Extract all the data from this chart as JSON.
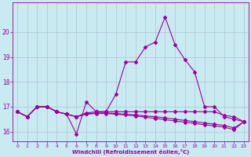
{
  "x": [
    0,
    1,
    2,
    3,
    4,
    5,
    6,
    7,
    8,
    9,
    10,
    11,
    12,
    13,
    14,
    15,
    16,
    17,
    18,
    19,
    20,
    21,
    22,
    23
  ],
  "line1": [
    16.8,
    16.6,
    17.0,
    17.0,
    16.8,
    16.7,
    15.9,
    17.2,
    16.8,
    16.8,
    17.5,
    18.8,
    18.8,
    19.4,
    19.6,
    20.6,
    19.5,
    18.9,
    18.4,
    17.0,
    17.0,
    16.6,
    16.5,
    16.4
  ],
  "line2": [
    16.8,
    16.6,
    17.0,
    17.0,
    16.8,
    16.7,
    16.6,
    16.75,
    16.8,
    16.8,
    16.8,
    16.8,
    16.8,
    16.8,
    16.8,
    16.8,
    16.8,
    16.8,
    16.8,
    16.8,
    16.8,
    16.65,
    16.6,
    16.4
  ],
  "line3": [
    16.8,
    16.6,
    17.0,
    17.0,
    16.8,
    16.7,
    16.6,
    16.72,
    16.75,
    16.75,
    16.73,
    16.7,
    16.67,
    16.63,
    16.6,
    16.55,
    16.5,
    16.45,
    16.4,
    16.35,
    16.3,
    16.25,
    16.15,
    16.4
  ],
  "line4": [
    16.8,
    16.6,
    17.0,
    17.0,
    16.8,
    16.7,
    16.6,
    16.7,
    16.73,
    16.73,
    16.7,
    16.67,
    16.63,
    16.58,
    16.53,
    16.48,
    16.43,
    16.38,
    16.33,
    16.28,
    16.23,
    16.18,
    16.08,
    16.4
  ],
  "ylim": [
    15.6,
    21.2
  ],
  "yticks": [
    16,
    17,
    18,
    19,
    20
  ],
  "xticks": [
    0,
    1,
    2,
    3,
    4,
    5,
    6,
    7,
    8,
    9,
    10,
    11,
    12,
    13,
    14,
    15,
    16,
    17,
    18,
    19,
    20,
    21,
    22,
    23
  ],
  "xlabel": "Windchill (Refroidissement éolien,°C)",
  "line_color": "#990099",
  "bg_color": "#c8eaf0",
  "grid_color": "#b0c4d8"
}
